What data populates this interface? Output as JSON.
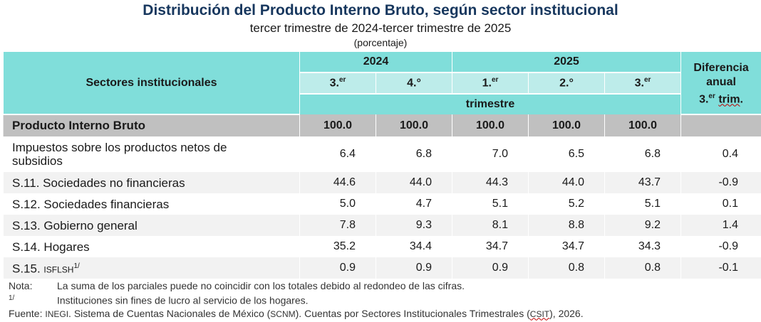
{
  "title": "Distribución del Producto Interno Bruto, según sector institucional",
  "subtitle": "tercer trimestre de 2024-tercer trimestre de 2025",
  "unit": "(porcentaje)",
  "header": {
    "sector_col": "Sectores institucionales",
    "years": [
      "2024",
      "2025"
    ],
    "quarters": [
      {
        "num": "3.",
        "sup": "er"
      },
      {
        "num": "4.°",
        "sup": ""
      },
      {
        "num": "1.",
        "sup": "er"
      },
      {
        "num": "2.°",
        "sup": ""
      },
      {
        "num": "3.",
        "sup": "er"
      }
    ],
    "trimestre": "trimestre",
    "diff_line1": "Diferencia",
    "diff_line2": "anual",
    "diff_line3_num": "3.",
    "diff_line3_sup": "er",
    "diff_line3_word": "trim",
    "diff_line3_end": "."
  },
  "pib": {
    "label": "Producto Interno Bruto",
    "values": [
      "100.0",
      "100.0",
      "100.0",
      "100.0",
      "100.0"
    ],
    "diff": ""
  },
  "rows": [
    {
      "label": "Impuestos sobre los productos netos de subsidios",
      "values": [
        "6.4",
        "6.8",
        "7.0",
        "6.5",
        "6.8"
      ],
      "diff": "0.4"
    },
    {
      "label": "S.11. Sociedades no financieras",
      "values": [
        "44.6",
        "44.0",
        "44.3",
        "44.0",
        "43.7"
      ],
      "diff": "-0.9"
    },
    {
      "label": "S.12. Sociedades financieras",
      "values": [
        "5.0",
        "4.7",
        "5.1",
        "5.2",
        "5.1"
      ],
      "diff": "0.1"
    },
    {
      "label": "S.13. Gobierno general",
      "values": [
        "7.8",
        "9.3",
        "8.1",
        "8.8",
        "9.2"
      ],
      "diff": "1.4"
    },
    {
      "label": "S.14. Hogares",
      "values": [
        "35.2",
        "34.4",
        "34.7",
        "34.7",
        "34.3"
      ],
      "diff": "-0.9"
    },
    {
      "label_prefix": "S.15. ",
      "label_small": "ISFLSH",
      "label_sup": "1/",
      "values": [
        "0.9",
        "0.9",
        "0.9",
        "0.8",
        "0.8"
      ],
      "diff": "-0.1"
    }
  ],
  "notes": {
    "nota_label": "Nota:",
    "nota_text": "La suma de los parciales puede no coincidir con los totales debido al redondeo de las cifras.",
    "fn_label": "1/",
    "fn_text": "Instituciones sin fines de lucro al servicio de los hogares.",
    "fuente_label": "Fuente:",
    "fuente_inegi": "INEGI",
    "fuente_text1": ". Sistema de Cuentas Nacionales de México (",
    "fuente_scnm": "SCNM",
    "fuente_text2": "). Cuentas por Sectores Institucionales Trimestrales (",
    "fuente_csit": "CSIT",
    "fuente_text3": "), 2026."
  },
  "colors": {
    "title": "#17375e",
    "header_dark": "#80deda",
    "header_light": "#bdecea",
    "pib_row": "#c0c0c0",
    "alt_row": "#f2f2f2"
  }
}
